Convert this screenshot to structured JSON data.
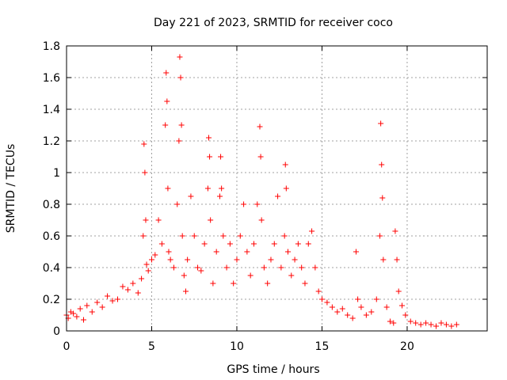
{
  "chart_data": {
    "type": "scatter",
    "title": "Day 221 of 2023, SRMTID for receiver coco",
    "xlabel": "GPS time / hours",
    "ylabel": "SRMTID / TECUs",
    "xlim": [
      0,
      24.7
    ],
    "ylim": [
      0,
      1.8
    ],
    "x_ticks": [
      0,
      5,
      10,
      15,
      20
    ],
    "x_tick_labels": [
      "0",
      "5",
      "10",
      "15",
      "20"
    ],
    "y_ticks": [
      0,
      0.2,
      0.4,
      0.6,
      0.8,
      1.0,
      1.2,
      1.4,
      1.6,
      1.8
    ],
    "y_tick_labels": [
      "0",
      "0.2",
      "0.4",
      "0.6",
      "0.8",
      "1",
      "1.2",
      "1.4",
      "1.6",
      "1.8"
    ],
    "grid": true,
    "marker": "+",
    "color": "#ff0000",
    "series": [
      {
        "name": "SRMTID",
        "x": [
          0.0,
          0.1,
          0.25,
          0.4,
          0.6,
          0.8,
          1.0,
          1.2,
          1.5,
          1.8,
          2.1,
          2.4,
          2.7,
          3.0,
          3.3,
          3.6,
          3.9,
          4.2,
          4.4,
          4.5,
          4.55,
          4.6,
          4.65,
          4.7,
          4.8,
          5.0,
          5.2,
          5.4,
          5.6,
          5.8,
          5.85,
          5.9,
          5.95,
          6.0,
          6.1,
          6.3,
          6.5,
          6.6,
          6.65,
          6.7,
          6.75,
          6.8,
          6.9,
          7.0,
          7.1,
          7.3,
          7.5,
          7.7,
          7.9,
          8.1,
          8.3,
          8.35,
          8.4,
          8.45,
          8.6,
          8.8,
          9.0,
          9.05,
          9.1,
          9.2,
          9.4,
          9.6,
          9.8,
          10.0,
          10.2,
          10.4,
          10.6,
          10.8,
          11.0,
          11.2,
          11.35,
          11.4,
          11.45,
          11.6,
          11.8,
          12.0,
          12.2,
          12.4,
          12.6,
          12.8,
          12.85,
          12.9,
          13.0,
          13.2,
          13.4,
          13.6,
          13.8,
          14.0,
          14.2,
          14.4,
          14.6,
          14.8,
          15.0,
          15.3,
          15.6,
          15.9,
          16.2,
          16.5,
          16.8,
          17.0,
          17.1,
          17.3,
          17.6,
          17.9,
          18.2,
          18.4,
          18.45,
          18.5,
          18.55,
          18.6,
          18.8,
          19.0,
          19.2,
          19.3,
          19.4,
          19.5,
          19.7,
          19.9,
          20.2,
          20.5,
          20.8,
          21.1,
          21.4,
          21.7,
          22.0,
          22.3,
          22.6,
          22.9
        ],
        "y": [
          0.1,
          0.08,
          0.12,
          0.11,
          0.09,
          0.14,
          0.07,
          0.16,
          0.12,
          0.18,
          0.15,
          0.22,
          0.19,
          0.2,
          0.28,
          0.26,
          0.3,
          0.24,
          0.33,
          0.6,
          1.18,
          1.0,
          0.7,
          0.42,
          0.38,
          0.45,
          0.48,
          0.7,
          0.55,
          1.3,
          1.63,
          1.45,
          0.9,
          0.5,
          0.45,
          0.4,
          0.8,
          1.2,
          1.73,
          1.6,
          1.3,
          0.6,
          0.35,
          0.25,
          0.45,
          0.85,
          0.6,
          0.4,
          0.38,
          0.55,
          0.9,
          1.22,
          1.1,
          0.7,
          0.3,
          0.5,
          0.85,
          1.1,
          0.9,
          0.6,
          0.4,
          0.55,
          0.3,
          0.45,
          0.6,
          0.8,
          0.5,
          0.35,
          0.55,
          0.8,
          1.29,
          1.1,
          0.7,
          0.4,
          0.3,
          0.45,
          0.55,
          0.85,
          0.4,
          0.6,
          1.05,
          0.9,
          0.5,
          0.35,
          0.45,
          0.55,
          0.4,
          0.3,
          0.55,
          0.63,
          0.4,
          0.25,
          0.2,
          0.18,
          0.15,
          0.12,
          0.14,
          0.1,
          0.08,
          0.5,
          0.2,
          0.15,
          0.1,
          0.12,
          0.2,
          0.6,
          1.31,
          1.05,
          0.84,
          0.45,
          0.15,
          0.06,
          0.05,
          0.63,
          0.45,
          0.25,
          0.16,
          0.1,
          0.06,
          0.05,
          0.04,
          0.05,
          0.04,
          0.03,
          0.05,
          0.04,
          0.03,
          0.04
        ]
      }
    ]
  }
}
